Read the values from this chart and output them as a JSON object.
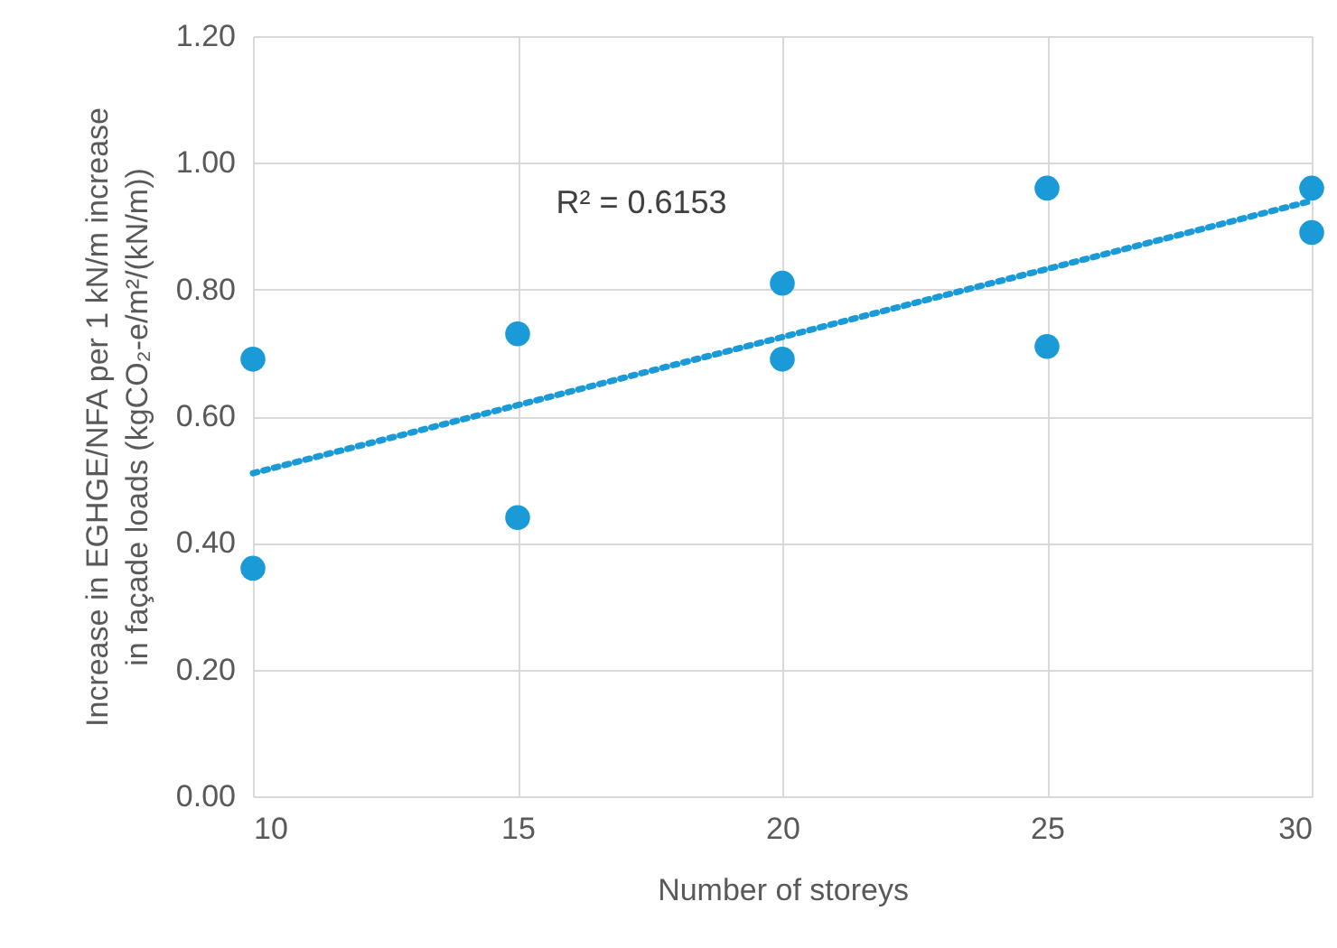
{
  "chart_data": {
    "type": "scatter",
    "xlabel": "Number of storeys",
    "ylabel": "Increase in EGHGE/NFA per 1 kN/m increase\nin façade loads (kgCO₂-e/m²/(kN/m))",
    "x": [
      10,
      10,
      15,
      15,
      20,
      20,
      25,
      25,
      30,
      30
    ],
    "series": [
      {
        "color": "#1a9ad6",
        "marker": "circle",
        "values": [
          0.69,
          0.36,
          0.73,
          0.44,
          0.81,
          0.69,
          0.96,
          0.71,
          0.96,
          0.89
        ]
      },
      {
        "type": "line",
        "color": "#1a9ad6",
        "line_style": "dotted",
        "marker": "none",
        "x": [
          10,
          30
        ],
        "values": [
          0.51,
          0.94
        ]
      }
    ],
    "annotations": [
      "R² = 0.6153"
    ],
    "xlim": [
      10,
      30
    ],
    "xticks": [
      10,
      15,
      20,
      25,
      30
    ],
    "ylim": [
      0,
      1.2
    ],
    "yticks": [
      {
        "value": 0,
        "label": "0.00"
      },
      {
        "value": 0.2,
        "label": "0.20"
      },
      {
        "value": 0.4,
        "label": "0.40"
      },
      {
        "value": 0.6,
        "label": "0.60"
      },
      {
        "value": 0.8,
        "label": "0.80"
      },
      {
        "value": 1.0,
        "label": "1.00"
      },
      {
        "value": 1.2,
        "label": "1.20"
      }
    ],
    "grid": true
  }
}
